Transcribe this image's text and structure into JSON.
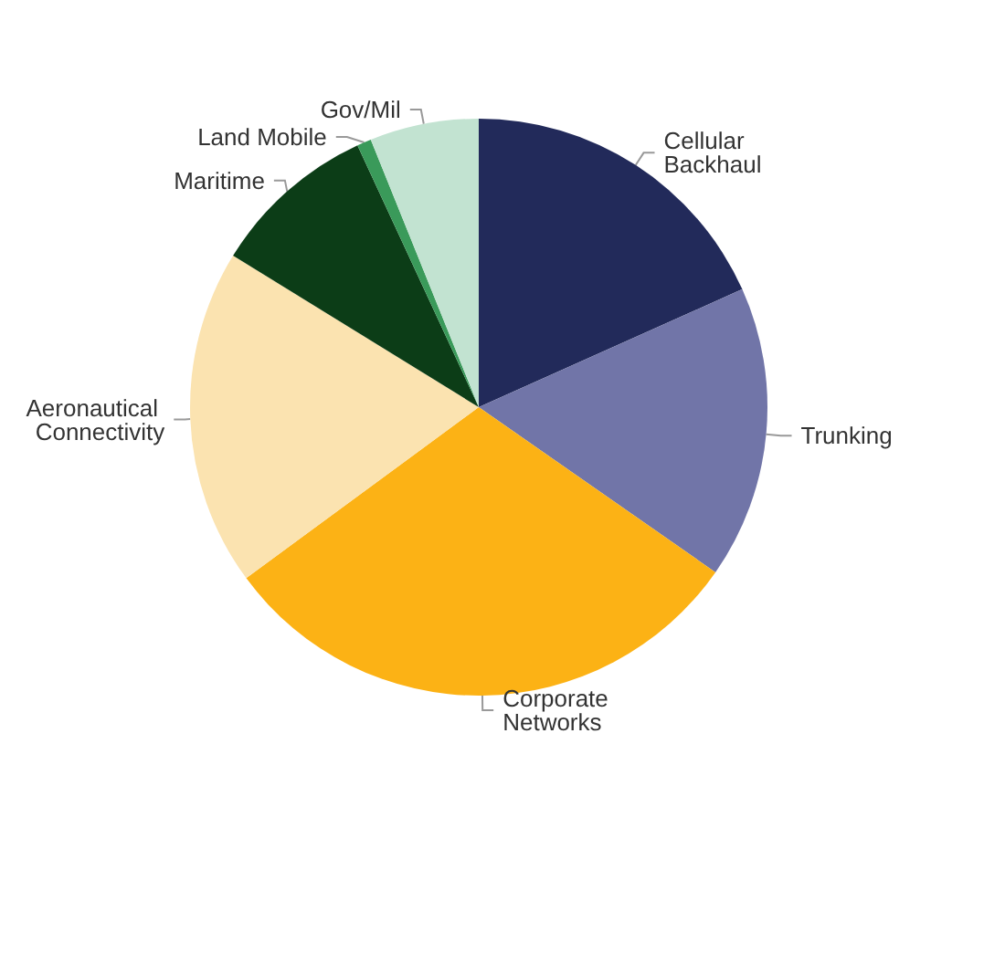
{
  "chart_data": {
    "type": "pie",
    "categories": [
      "Cellular Backhaul",
      "Trunking",
      "Corporate Networks",
      "Aeronautical Connectivity",
      "Maritime",
      "Land Mobile",
      "Gov/Mil"
    ],
    "values": [
      18.3,
      16.4,
      30.2,
      18.9,
      9.3,
      0.8,
      6.1
    ],
    "colors": [
      "#222a5a",
      "#7175a8",
      "#fcb215",
      "#fbe3b0",
      "#0c3d17",
      "#3a9a5a",
      "#c2e3d1"
    ]
  }
}
